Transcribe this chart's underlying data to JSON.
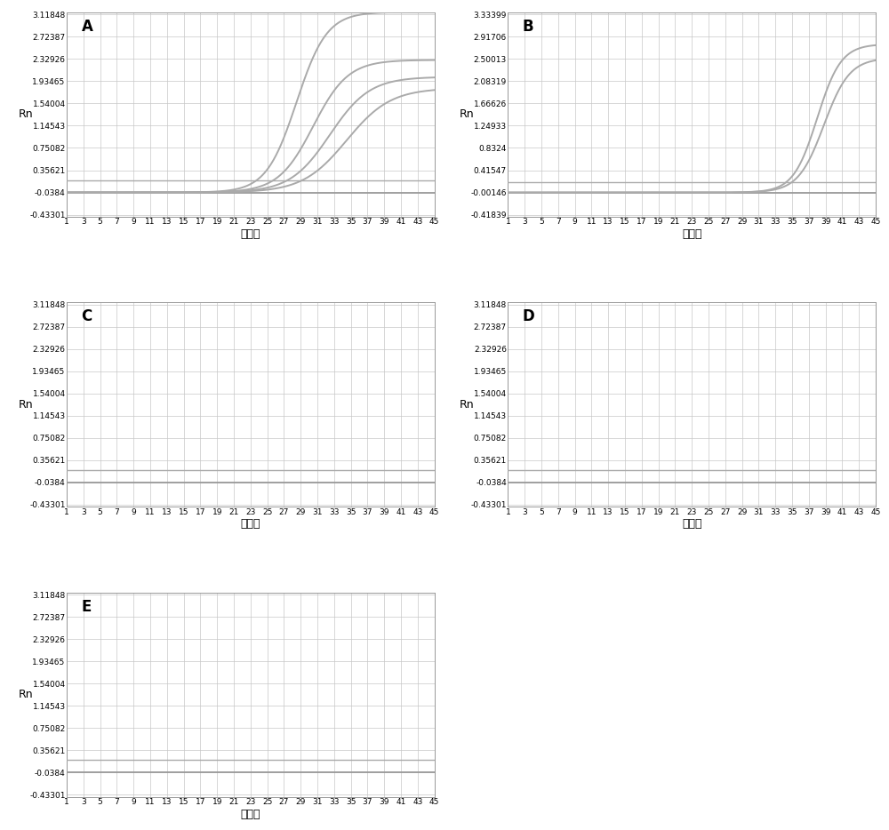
{
  "panels": [
    {
      "label": "A",
      "ytick_vals": [
        3.11848,
        2.72387,
        2.32926,
        1.93465,
        1.54004,
        1.14543,
        0.75082,
        0.35621,
        -0.0384,
        -0.43301
      ],
      "ymin": -0.43301,
      "ymax": 3.11848,
      "sigmoid_curves": [
        {
          "L": 3.2,
          "k": 0.55,
          "x0": 28.5
        },
        {
          "L": 2.35,
          "k": 0.48,
          "x0": 30.5
        },
        {
          "L": 2.05,
          "k": 0.42,
          "x0": 32.5
        },
        {
          "L": 1.85,
          "k": 0.38,
          "x0": 34.5
        }
      ],
      "baseline": -0.0384,
      "threshold_line": 0.18,
      "has_curves": true
    },
    {
      "label": "B",
      "ytick_vals": [
        3.33399,
        2.91706,
        2.50013,
        2.08319,
        1.66626,
        1.24933,
        0.8324,
        0.41547,
        -0.00146,
        -0.41839
      ],
      "ymin": -0.41839,
      "ymax": 3.33399,
      "sigmoid_curves": [
        {
          "L": 2.78,
          "k": 0.7,
          "x0": 38.0
        },
        {
          "L": 2.52,
          "k": 0.65,
          "x0": 38.8
        }
      ],
      "baseline": -0.00146,
      "threshold_line": 0.19,
      "has_curves": true
    },
    {
      "label": "C",
      "ytick_vals": [
        3.11848,
        2.72387,
        2.32926,
        1.93465,
        1.54004,
        1.14543,
        0.75082,
        0.35621,
        -0.0384,
        -0.43301
      ],
      "ymin": -0.43301,
      "ymax": 3.11848,
      "sigmoid_curves": [],
      "baseline": -0.0384,
      "threshold_line": 0.18,
      "has_curves": false
    },
    {
      "label": "D",
      "ytick_vals": [
        3.11848,
        2.72387,
        2.32926,
        1.93465,
        1.54004,
        1.14543,
        0.75082,
        0.35621,
        -0.0384,
        -0.43301
      ],
      "ymin": -0.43301,
      "ymax": 3.11848,
      "sigmoid_curves": [],
      "baseline": -0.0384,
      "threshold_line": 0.18,
      "has_curves": false
    },
    {
      "label": "E",
      "ytick_vals": [
        3.11848,
        2.72387,
        2.32926,
        1.93465,
        1.54004,
        1.14543,
        0.75082,
        0.35621,
        -0.0384,
        -0.43301
      ],
      "ymin": -0.43301,
      "ymax": 3.11848,
      "sigmoid_curves": [],
      "baseline": -0.0384,
      "threshold_line": 0.18,
      "has_curves": false
    }
  ],
  "xtick_vals": [
    1,
    3,
    5,
    7,
    9,
    11,
    13,
    15,
    17,
    19,
    21,
    23,
    25,
    27,
    29,
    31,
    33,
    35,
    37,
    39,
    41,
    43,
    45
  ],
  "xlabel": "循环数",
  "ylabel": "Rn",
  "curve_color": "#aaaaaa",
  "baseline_color": "#999999",
  "threshold_color": "#aaaaaa",
  "grid_color": "#c8c8c8",
  "bg_color": "#ffffff",
  "spine_color": "#999999",
  "label_fontsize": 12,
  "tick_fontsize": 6.5,
  "axis_label_fontsize": 9
}
